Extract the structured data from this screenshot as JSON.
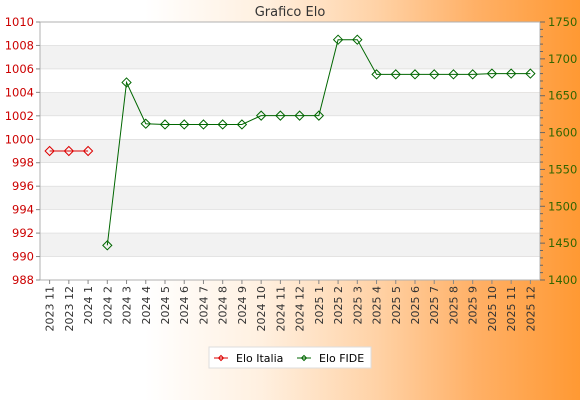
{
  "chart_data": {
    "type": "line",
    "title": "Grafico Elo",
    "categories": [
      "2023 11",
      "2023 12",
      "2024 1",
      "2024 2",
      "2024 3",
      "2024 4",
      "2024 5",
      "2024 6",
      "2024 7",
      "2024 8",
      "2024 9",
      "2024 10",
      "2024 11",
      "2024 12",
      "2025 1",
      "2025 2",
      "2025 3",
      "2025 4",
      "2025 5",
      "2025 6",
      "2025 7",
      "2025 8",
      "2025 9",
      "2025 10",
      "2025 11",
      "2025 12"
    ],
    "y_left": {
      "range": [
        988,
        1010
      ],
      "ticks": [
        "1010",
        "1008",
        "1006",
        "1004",
        "1002",
        "1000",
        "998",
        "996",
        "994",
        "992",
        "990",
        "988"
      ]
    },
    "y_right": {
      "range": [
        1400,
        1750
      ],
      "ticks": [
        "1750",
        "1700",
        "1650",
        "1600",
        "1550",
        "1500",
        "1450",
        "1400"
      ]
    },
    "series": [
      {
        "name": "Elo Italia",
        "axis": "left",
        "color": "#dd0000",
        "values": [
          999,
          999,
          999,
          null,
          null,
          null,
          null,
          null,
          null,
          null,
          null,
          null,
          null,
          null,
          null,
          null,
          null,
          null,
          null,
          null,
          null,
          null,
          null,
          null,
          null,
          null
        ]
      },
      {
        "name": "Elo FIDE",
        "axis": "right",
        "color": "#006600",
        "values": [
          null,
          null,
          null,
          1447,
          1668,
          1612,
          1611,
          1611,
          1611,
          1611,
          1611,
          1623,
          1623,
          1623,
          1623,
          1726,
          1726,
          1679,
          1679,
          1679,
          1679,
          1679,
          1679,
          1680,
          1680,
          1680
        ]
      }
    ],
    "grid": true,
    "legend_position": "bottom"
  },
  "colors": {
    "left_axis_text": "#cc0000",
    "right_axis_text": "#336600",
    "band_light": "#ffffff",
    "band_dark": "#f2f2f2",
    "grid_line": "#d8d8d8"
  }
}
